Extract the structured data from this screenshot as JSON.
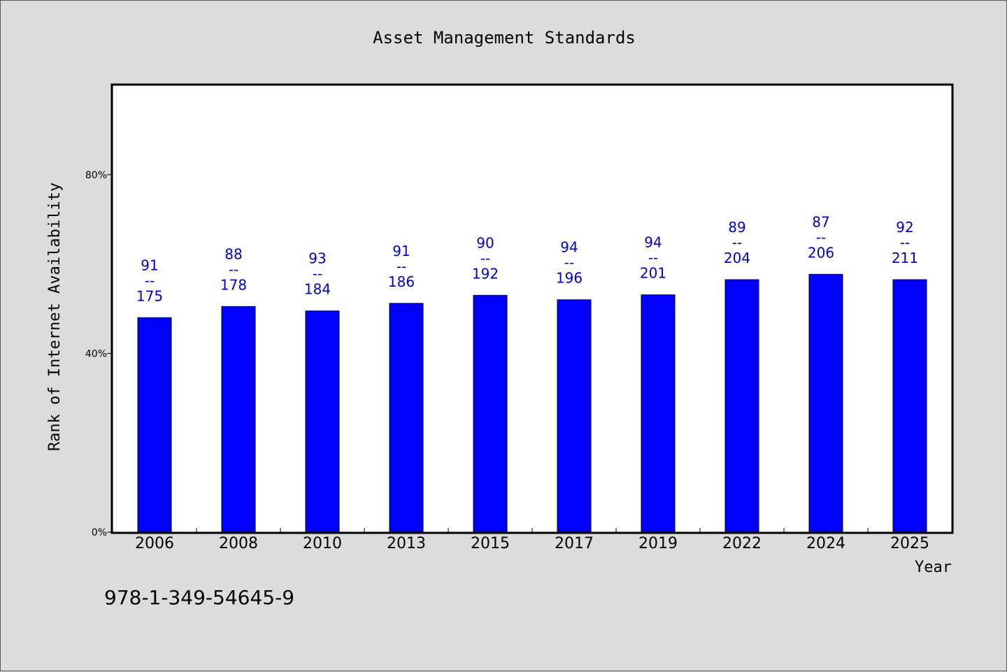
{
  "chart_data": {
    "type": "bar",
    "title": "Asset Management Standards",
    "xlabel": "Year",
    "ylabel": "Rank of Internet Availability",
    "categories": [
      "2006",
      "2008",
      "2010",
      "2013",
      "2015",
      "2017",
      "2019",
      "2022",
      "2024",
      "2025"
    ],
    "values": [
      48,
      50.5,
      49.5,
      51.2,
      53,
      52,
      53.1,
      56.5,
      57.7,
      56.5
    ],
    "label_top": [
      "91",
      "88",
      "93",
      "91",
      "90",
      "94",
      "94",
      "89",
      "87",
      "92"
    ],
    "label_separator": "--",
    "label_bottom": [
      "175",
      "178",
      "184",
      "186",
      "192",
      "196",
      "201",
      "204",
      "206",
      "211"
    ],
    "ylim": [
      0,
      100
    ],
    "yticks": [
      0,
      40,
      80
    ],
    "ytick_labels": [
      "0%",
      "40%",
      "80%"
    ],
    "grid": false,
    "bar_color": "#0000ff",
    "label_color": "#0000cc"
  },
  "footnote": "978-1-349-54645-9"
}
